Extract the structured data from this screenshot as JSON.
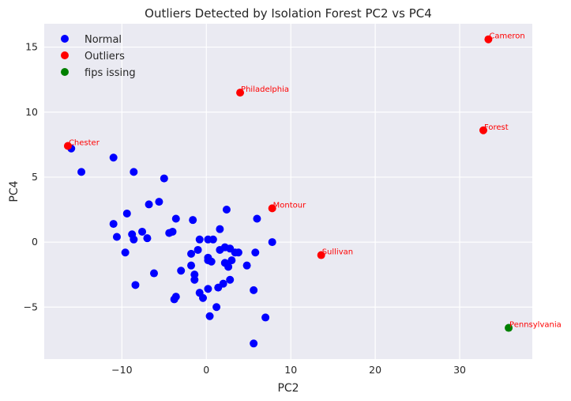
{
  "chart_data": {
    "type": "scatter",
    "title": "Outliers Detected by Isolation Forest PC2 vs PC4",
    "xlabel": "PC2",
    "ylabel": "PC4",
    "xlim": [
      -19.2,
      38.6
    ],
    "ylim": [
      -9.0,
      16.8
    ],
    "xticks": [
      -10,
      0,
      10,
      20,
      30
    ],
    "yticks": [
      -5,
      0,
      5,
      10,
      15
    ],
    "xtick_labels": [
      "−10",
      "0",
      "10",
      "20",
      "30"
    ],
    "ytick_labels": [
      "−5",
      "0",
      "5",
      "10",
      "15"
    ],
    "grid": true,
    "legend_position": "top-left",
    "series": [
      {
        "name": "Normal",
        "color": "#0000ff",
        "points": [
          [
            -16.0,
            7.2
          ],
          [
            -14.8,
            5.4
          ],
          [
            -11.0,
            6.5
          ],
          [
            -8.6,
            5.4
          ],
          [
            -5.0,
            4.9
          ],
          [
            -5.6,
            3.1
          ],
          [
            -6.8,
            2.9
          ],
          [
            -9.4,
            2.2
          ],
          [
            -11.0,
            1.4
          ],
          [
            -10.6,
            0.4
          ],
          [
            -8.8,
            0.6
          ],
          [
            -8.6,
            0.2
          ],
          [
            -7.6,
            0.8
          ],
          [
            -7.0,
            0.3
          ],
          [
            -4.4,
            0.7
          ],
          [
            -4.0,
            0.8
          ],
          [
            -3.6,
            1.8
          ],
          [
            -1.6,
            1.7
          ],
          [
            -9.6,
            -0.8
          ],
          [
            -6.2,
            -2.4
          ],
          [
            -8.4,
            -3.3
          ],
          [
            -3.0,
            -2.2
          ],
          [
            -1.8,
            -1.8
          ],
          [
            -1.8,
            -0.9
          ],
          [
            -1.0,
            -0.6
          ],
          [
            -0.8,
            0.2
          ],
          [
            0.2,
            0.2
          ],
          [
            0.8,
            0.2
          ],
          [
            1.6,
            1.0
          ],
          [
            2.4,
            2.5
          ],
          [
            6.0,
            1.8
          ],
          [
            7.8,
            0.0
          ],
          [
            1.6,
            -0.6
          ],
          [
            2.2,
            -0.4
          ],
          [
            2.8,
            -0.5
          ],
          [
            3.4,
            -0.8
          ],
          [
            3.8,
            -0.8
          ],
          [
            5.8,
            -0.8
          ],
          [
            0.2,
            -1.2
          ],
          [
            0.2,
            -1.4
          ],
          [
            0.6,
            -1.5
          ],
          [
            2.2,
            -1.6
          ],
          [
            2.6,
            -1.9
          ],
          [
            3.0,
            -1.4
          ],
          [
            4.8,
            -1.8
          ],
          [
            -1.4,
            -2.5
          ],
          [
            -1.4,
            -2.9
          ],
          [
            2.8,
            -2.9
          ],
          [
            2.0,
            -3.2
          ],
          [
            1.4,
            -3.5
          ],
          [
            0.2,
            -3.6
          ],
          [
            -0.8,
            -3.9
          ],
          [
            -0.4,
            -4.3
          ],
          [
            -3.6,
            -4.2
          ],
          [
            -3.8,
            -4.4
          ],
          [
            5.6,
            -3.7
          ],
          [
            1.2,
            -5.0
          ],
          [
            0.4,
            -5.7
          ],
          [
            7.0,
            -5.8
          ],
          [
            5.6,
            -7.8
          ]
        ]
      },
      {
        "name": "Outliers",
        "color": "#ff0000",
        "points": [
          [
            -16.4,
            7.4,
            "Chester"
          ],
          [
            4.0,
            11.5,
            "Philadelphia"
          ],
          [
            33.4,
            15.6,
            "Cameron"
          ],
          [
            32.8,
            8.6,
            "Forest"
          ],
          [
            7.8,
            2.6,
            "Montour"
          ],
          [
            13.6,
            -1.0,
            "Sullivan"
          ]
        ]
      },
      {
        "name": "fips issing",
        "color": "#008000",
        "points": [
          [
            35.8,
            -6.6,
            "Pennsylvania"
          ]
        ]
      }
    ]
  }
}
